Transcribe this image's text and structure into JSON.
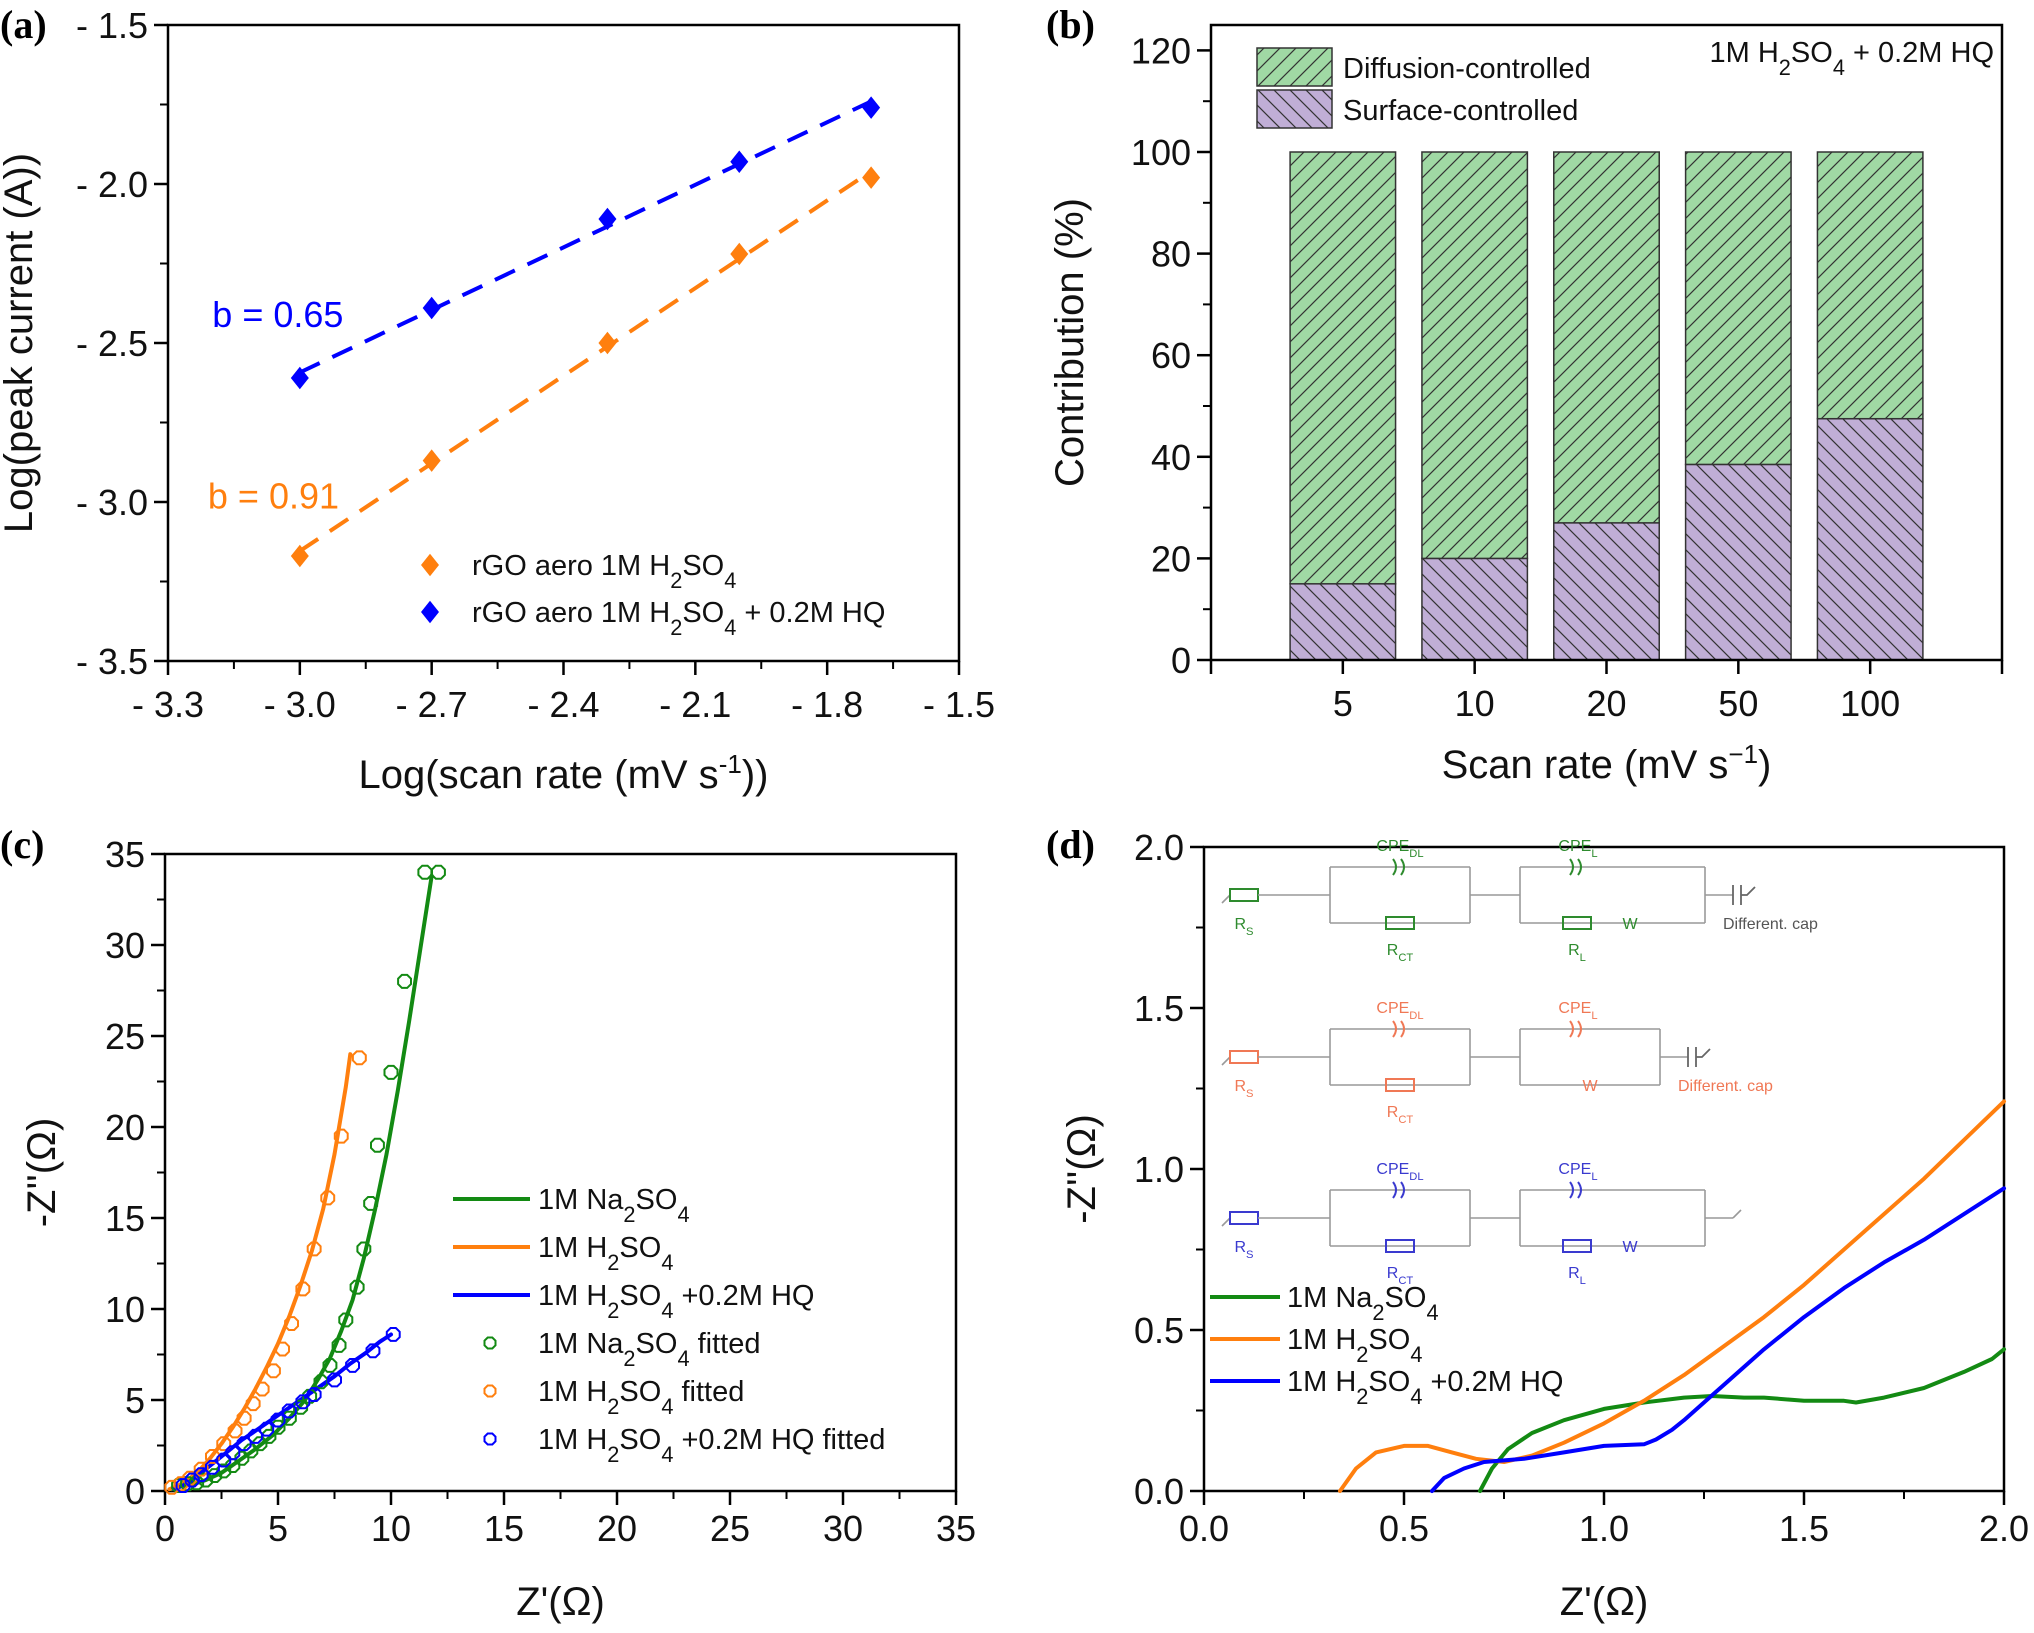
{
  "panel_labels": [
    "(a)",
    "(b)",
    "(c)",
    "(d)"
  ],
  "chart_data": [
    {
      "id": "a",
      "type": "scatter",
      "title": "",
      "xlabel": "Log(scan rate (mV s",
      "xlabel_sup": "-1",
      "xlabel_end": "))",
      "ylabel": "Log(peak current (A))",
      "xlim": [
        -3.3,
        -1.5
      ],
      "ylim": [
        -3.5,
        -1.5
      ],
      "xticks": [
        -3.3,
        -3.0,
        -2.7,
        -2.4,
        -2.1,
        -1.8,
        -1.5
      ],
      "xtick_labels": [
        "- 3.3",
        "- 3.0",
        "- 2.7",
        "- 2.4",
        "- 2.1",
        "- 1.8",
        "- 1.5"
      ],
      "yticks": [
        -1.5,
        -2.0,
        -2.5,
        -3.0,
        -3.5
      ],
      "ytick_labels": [
        "- 1.5",
        "- 2.0",
        "- 2.5",
        "- 3.0",
        "- 3.5"
      ],
      "grid": false,
      "legend_position": "bottom-right",
      "series": [
        {
          "name": "rGO aero 1M H2SO4",
          "legend_parts": [
            "rGO aero 1M H",
            "2",
            "SO",
            "4",
            ""
          ],
          "color": "#ff7f0e",
          "marker": "diamond",
          "fit": "dashed",
          "x": [
            -3.0,
            -2.7,
            -2.3,
            -2.0,
            -1.7
          ],
          "y": [
            -3.17,
            -2.87,
            -2.5,
            -2.22,
            -1.98
          ],
          "annotation": "b = 0.91",
          "annotation_at": [
            -3.06,
            -3.02
          ]
        },
        {
          "name": "rGO aero 1M H2SO4 + 0.2M HQ",
          "legend_parts": [
            "rGO aero 1M H",
            "2",
            "SO",
            "4",
            " + 0.2M HQ"
          ],
          "color": "#0000ff",
          "marker": "diamond",
          "fit": "dashed",
          "x": [
            -3.0,
            -2.7,
            -2.3,
            -2.0,
            -1.7
          ],
          "y": [
            -2.61,
            -2.39,
            -2.11,
            -1.93,
            -1.76
          ],
          "annotation": "b = 0.65",
          "annotation_at": [
            -3.05,
            -2.45
          ]
        }
      ]
    },
    {
      "id": "b",
      "type": "bar",
      "stacked": true,
      "title": "",
      "annotation": [
        "1M H",
        "2",
        "SO",
        "4",
        " + 0.2M HQ"
      ],
      "xlabel": "Scan rate (mV s",
      "xlabel_sup": "−1",
      "xlabel_end": ")",
      "ylabel": "Contribution (%)",
      "categories": [
        "5",
        "10",
        "20",
        "50",
        "100"
      ],
      "ylim": [
        0,
        125
      ],
      "yticks": [
        0,
        20,
        40,
        60,
        80,
        100,
        120
      ],
      "grid": false,
      "legend_position": "top-left",
      "series": [
        {
          "name": "Surface-controlled",
          "color": "#c0aed6",
          "hatch": "backslash",
          "values": [
            15,
            20,
            27,
            38.5,
            47.5
          ]
        },
        {
          "name": "Diffusion-controlled",
          "color": "#a0d9a4",
          "hatch": "slash",
          "values": [
            85,
            80,
            73,
            61.5,
            52.5
          ]
        }
      ],
      "legend_order": [
        "Diffusion-controlled",
        "Surface-controlled"
      ]
    },
    {
      "id": "c",
      "type": "scatter",
      "title": "",
      "xlabel": "Z'(Ω)",
      "ylabel": "-Z''(Ω)",
      "xlim": [
        0,
        35
      ],
      "ylim": [
        0,
        35
      ],
      "xticks": [
        0,
        5,
        10,
        15,
        20,
        25,
        30,
        35
      ],
      "yticks": [
        0,
        5,
        10,
        15,
        20,
        25,
        30,
        35
      ],
      "grid": false,
      "legend_position": "center-right",
      "series": [
        {
          "name": "1M Na2SO4",
          "legend_parts": [
            "1M Na",
            "2",
            "SO",
            "4",
            ""
          ],
          "color": "#138a13",
          "style": "line",
          "x": [
            0.3,
            0.8,
            1.3,
            1.8,
            2.5,
            3.2,
            4.0,
            4.8,
            5.5,
            6.2,
            6.8,
            7.3,
            7.8,
            8.3,
            8.8,
            9.3,
            9.8,
            10.3,
            10.8,
            11.3,
            11.8
          ],
          "y": [
            0.1,
            0.3,
            0.4,
            0.6,
            1.0,
            1.6,
            2.3,
            3.1,
            4.0,
            5.0,
            6.2,
            7.3,
            8.8,
            10.5,
            12.8,
            15.5,
            18.5,
            22.0,
            25.8,
            29.8,
            33.8
          ]
        },
        {
          "name": "1M H2SO4",
          "legend_parts": [
            "1M H",
            "2",
            "SO",
            "4",
            ""
          ],
          "color": "#ff7f0e",
          "style": "line",
          "x": [
            0.2,
            0.6,
            1.0,
            1.5,
            2.0,
            2.5,
            3.0,
            3.5,
            4.0,
            4.5,
            5.0,
            5.5,
            6.0,
            6.5,
            7.0,
            7.5,
            8.0,
            8.2
          ],
          "y": [
            0.1,
            0.3,
            0.6,
            1.1,
            1.8,
            2.6,
            3.5,
            4.5,
            5.6,
            6.8,
            8.1,
            9.6,
            11.3,
            13.2,
            15.5,
            18.5,
            22.2,
            24.0
          ]
        },
        {
          "name": "1M H2SO4 +0.2M HQ",
          "legend_parts": [
            "1M H",
            "2",
            "SO",
            "4",
            " +0.2M HQ"
          ],
          "color": "#0000ff",
          "style": "line",
          "x": [
            0.4,
            0.8,
            1.2,
            1.7,
            2.2,
            2.8,
            3.4,
            4.0,
            4.7,
            5.4,
            6.1,
            6.8,
            7.5,
            8.2,
            8.9,
            9.5,
            10.0
          ],
          "y": [
            0.1,
            0.3,
            0.6,
            1.1,
            1.6,
            2.2,
            2.8,
            3.3,
            3.9,
            4.5,
            5.1,
            5.7,
            6.3,
            7.0,
            7.6,
            8.2,
            8.6
          ]
        },
        {
          "name": "1M Na2SO4 fitted",
          "legend_parts": [
            "1M Na",
            "2",
            "SO",
            "4",
            " fitted"
          ],
          "color": "#138a13",
          "style": "marker",
          "x": [
            0.6,
            1.0,
            1.4,
            1.8,
            2.2,
            2.6,
            3.0,
            3.4,
            3.8,
            4.2,
            4.6,
            5.0,
            5.5,
            6.0,
            6.4,
            6.9,
            7.3,
            7.7,
            8.0,
            8.5,
            8.8,
            9.1,
            9.4,
            10.0,
            10.6,
            11.5,
            12.1
          ],
          "y": [
            0.3,
            0.4,
            0.45,
            0.6,
            0.85,
            1.1,
            1.4,
            1.8,
            2.2,
            2.6,
            3.0,
            3.5,
            4.0,
            4.6,
            5.2,
            6.0,
            6.9,
            8.0,
            9.4,
            11.2,
            13.3,
            15.8,
            19.0,
            23.0,
            28.0,
            34.0,
            34.0
          ]
        },
        {
          "name": "1M H2SO4 fitted",
          "legend_parts": [
            "1M H",
            "2",
            "SO",
            "4",
            " fitted"
          ],
          "color": "#ff7f0e",
          "style": "marker",
          "x": [
            0.3,
            0.7,
            1.1,
            1.6,
            2.1,
            2.6,
            3.1,
            3.5,
            3.9,
            4.3,
            4.8,
            5.2,
            5.6,
            6.1,
            6.6,
            7.2,
            7.8,
            8.6
          ],
          "y": [
            0.2,
            0.4,
            0.7,
            1.2,
            1.9,
            2.6,
            3.3,
            4.0,
            4.8,
            5.6,
            6.6,
            7.8,
            9.2,
            11.1,
            13.3,
            16.1,
            19.5,
            23.8
          ]
        },
        {
          "name": "1M H2SO4 +0.2M HQ fitted",
          "legend_parts": [
            "1M H",
            "2",
            "SO",
            "4",
            " +0.2M HQ fitted"
          ],
          "color": "#0000ff",
          "style": "marker",
          "x": [
            0.8,
            1.2,
            1.6,
            2.1,
            2.6,
            3.0,
            3.5,
            4.0,
            4.5,
            5.0,
            5.5,
            6.1,
            6.6,
            7.5,
            8.3,
            9.2,
            10.1
          ],
          "y": [
            0.3,
            0.6,
            0.9,
            1.3,
            1.7,
            2.1,
            2.6,
            3.0,
            3.4,
            3.9,
            4.4,
            4.9,
            5.3,
            6.1,
            6.9,
            7.7,
            8.6
          ]
        }
      ]
    },
    {
      "id": "d",
      "type": "line",
      "title": "",
      "xlabel": "Z'(Ω)",
      "ylabel": "-Z''(Ω)",
      "xlim": [
        0,
        2.0
      ],
      "ylim": [
        0,
        2.0
      ],
      "xticks": [
        0,
        0.5,
        1.0,
        1.5,
        2.0
      ],
      "xtick_labels": [
        "0.0",
        "0.5",
        "1.0",
        "1.5",
        "2.0"
      ],
      "yticks": [
        0,
        0.5,
        1.0,
        1.5,
        2.0
      ],
      "ytick_labels": [
        "0.0",
        "0.5",
        "1.0",
        "1.5",
        "2.0"
      ],
      "grid": false,
      "legend_position": "center-left",
      "series": [
        {
          "name": "1M Na2SO4",
          "legend_parts": [
            "1M Na",
            "2",
            "SO",
            "4",
            ""
          ],
          "color": "#138a13",
          "x": [
            0.69,
            0.72,
            0.76,
            0.82,
            0.9,
            1.0,
            1.1,
            1.2,
            1.27,
            1.35,
            1.4,
            1.5,
            1.6,
            1.63,
            1.7,
            1.8,
            1.9,
            1.97,
            2.0
          ],
          "y": [
            0.0,
            0.07,
            0.13,
            0.18,
            0.22,
            0.255,
            0.275,
            0.29,
            0.295,
            0.29,
            0.29,
            0.28,
            0.28,
            0.275,
            0.29,
            0.32,
            0.37,
            0.41,
            0.44
          ]
        },
        {
          "name": "1M H2SO4",
          "legend_parts": [
            "1M H",
            "2",
            "SO",
            "4",
            ""
          ],
          "color": "#ff7f0e",
          "x": [
            0.34,
            0.38,
            0.43,
            0.5,
            0.56,
            0.62,
            0.68,
            0.75,
            0.82,
            0.9,
            1.0,
            1.1,
            1.2,
            1.3,
            1.4,
            1.5,
            1.6,
            1.7,
            1.8,
            1.9,
            2.0
          ],
          "y": [
            0.0,
            0.07,
            0.12,
            0.14,
            0.14,
            0.12,
            0.1,
            0.09,
            0.11,
            0.15,
            0.21,
            0.28,
            0.36,
            0.45,
            0.54,
            0.64,
            0.75,
            0.86,
            0.97,
            1.09,
            1.21
          ]
        },
        {
          "name": "1M H2SO4 +0.2M HQ",
          "legend_parts": [
            "1M H",
            "2",
            "SO",
            "4",
            " +0.2M HQ"
          ],
          "color": "#0000ff",
          "x": [
            0.57,
            0.6,
            0.65,
            0.7,
            0.8,
            0.9,
            1.0,
            1.1,
            1.13,
            1.17,
            1.2,
            1.3,
            1.4,
            1.5,
            1.6,
            1.7,
            1.8,
            1.9,
            2.0
          ],
          "y": [
            0.0,
            0.04,
            0.07,
            0.09,
            0.1,
            0.12,
            0.14,
            0.145,
            0.16,
            0.19,
            0.22,
            0.33,
            0.44,
            0.54,
            0.63,
            0.71,
            0.78,
            0.86,
            0.94
          ]
        }
      ],
      "inset_circuits": [
        {
          "color": "#2e8b2e",
          "labels": {
            "rs": "R",
            "rs_sub": "S",
            "cpe_dl": "CPE",
            "cpe_dl_sub": "DL",
            "rct": "R",
            "rct_sub": "CT",
            "cpe_l": "CPE",
            "cpe_l_sub": "L",
            "rl": "R",
            "rl_sub": "L",
            "w": "W",
            "cap": "Different. cap"
          }
        },
        {
          "color": "#f07855",
          "labels": {
            "rs": "R",
            "rs_sub": "S",
            "cpe_dl": "CPE",
            "cpe_dl_sub": "DL",
            "rct": "R",
            "rct_sub": "CT",
            "cpe_l": "CPE",
            "cpe_l_sub": "L",
            "w": "W",
            "cap": "Different. cap"
          }
        },
        {
          "color": "#3a3acf",
          "labels": {
            "rs": "R",
            "rs_sub": "S",
            "cpe_dl": "CPE",
            "cpe_dl_sub": "DL",
            "rct": "R",
            "rct_sub": "CT",
            "cpe_l": "CPE",
            "cpe_l_sub": "L",
            "rl": "R",
            "rl_sub": "L",
            "w": "W"
          }
        }
      ]
    }
  ]
}
